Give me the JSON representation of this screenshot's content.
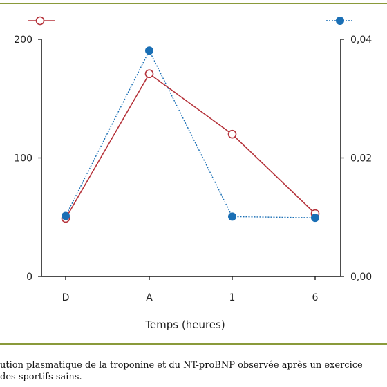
{
  "chart_data": {
    "type": "line",
    "categories": [
      "D",
      "A",
      "1",
      "6"
    ],
    "xlabel": "Temps (heures)",
    "left_axis": {
      "ticks": [
        "0",
        "100",
        "200"
      ],
      "ylim": [
        0,
        200
      ]
    },
    "right_axis": {
      "ticks": [
        "0,00",
        "0,02",
        "0,04"
      ],
      "ylim": [
        0,
        0.04
      ]
    },
    "series": [
      {
        "axis": "left",
        "values": [
          49,
          171,
          120,
          53
        ],
        "color": "#b5323a",
        "marker": "open-circle",
        "line": "solid"
      },
      {
        "axis": "right",
        "values": [
          0.0102,
          0.0381,
          0.0101,
          0.0099
        ],
        "color": "#1a6fb5",
        "marker": "filled-circle",
        "line": "dotted"
      }
    ]
  },
  "caption": {
    "line1": "ution plasmatique de la troponine et du NT-proBNP observée après un exercice",
    "line2": "des sportifs sains."
  }
}
